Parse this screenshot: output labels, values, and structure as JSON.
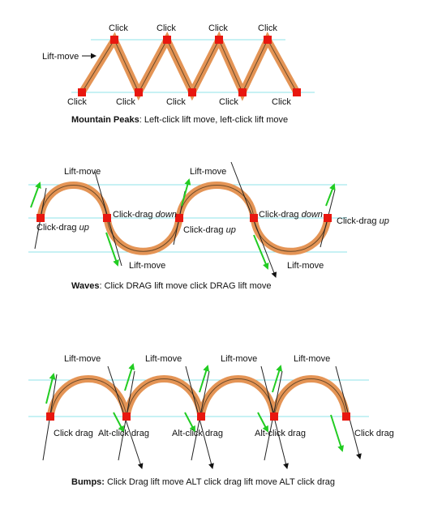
{
  "colors": {
    "guide": "#8fe3e8",
    "path_outer": "#e49455",
    "path_inner": "#6a4a2a",
    "node": "#e8170f",
    "arrow": "#22cc22",
    "handle": "#222222"
  },
  "mountain": {
    "peak_label": "Click",
    "valley_label": "Click",
    "side_label": "Lift-move",
    "caption_bold": "Mountain Peaks",
    "caption_rest": ": Left-click lift move, left-click lift move"
  },
  "waves": {
    "lift_move": "Lift-move",
    "click_drag": "Click-drag",
    "down": "down",
    "up": "up",
    "caption_bold": "Waves",
    "caption_rest": ": Click DRAG lift move click DRAG lift move"
  },
  "bumps": {
    "lift_move": "Lift-move",
    "click_drag": "Click drag",
    "alt_click_drag": "Alt-click drag",
    "caption_bold": "Bumps:",
    "caption_rest": " Click Drag lift move ALT click drag lift move ALT click drag"
  }
}
